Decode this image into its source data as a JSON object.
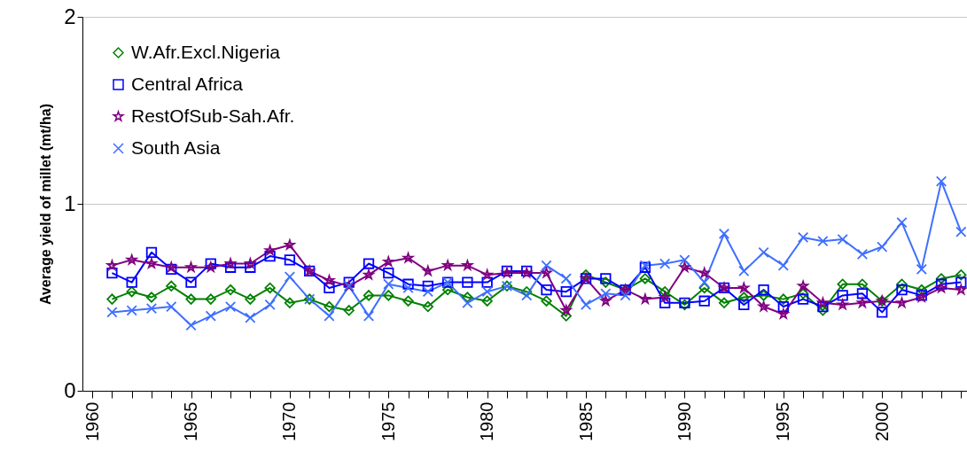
{
  "chart_data": {
    "type": "line",
    "ylabel": "Average yield of millet (mt/ha)",
    "legend": "top left",
    "grid": "y",
    "line_style": "solid",
    "x": [
      1961,
      1962,
      1963,
      1964,
      1965,
      1966,
      1967,
      1968,
      1969,
      1970,
      1971,
      1972,
      1973,
      1974,
      1975,
      1976,
      1977,
      1978,
      1979,
      1980,
      1981,
      1982,
      1983,
      1984,
      1985,
      1986,
      1987,
      1988,
      1989,
      1990,
      1991,
      1992,
      1993,
      1994,
      1995,
      1996,
      1997,
      1998,
      1999,
      2000,
      2001,
      2002,
      2003,
      2004
    ],
    "xlim": [
      1959.5,
      2004.3
    ],
    "xticks": [
      1960,
      {
        "value": 1961,
        "label": null
      },
      {
        "value": 1962,
        "label": null
      },
      {
        "value": 1963,
        "label": null
      },
      {
        "value": 1964,
        "label": null
      },
      1965,
      {
        "value": 1966,
        "label": null
      },
      {
        "value": 1967,
        "label": null
      },
      {
        "value": 1968,
        "label": null
      },
      {
        "value": 1969,
        "label": null
      },
      1970,
      {
        "value": 1971,
        "label": null
      },
      {
        "value": 1972,
        "label": null
      },
      {
        "value": 1973,
        "label": null
      },
      {
        "value": 1974,
        "label": null
      },
      1975,
      {
        "value": 1976,
        "label": null
      },
      {
        "value": 1977,
        "label": null
      },
      {
        "value": 1978,
        "label": null
      },
      {
        "value": 1979,
        "label": null
      },
      1980,
      {
        "value": 1981,
        "label": null
      },
      {
        "value": 1982,
        "label": null
      },
      {
        "value": 1983,
        "label": null
      },
      {
        "value": 1984,
        "label": null
      },
      1985,
      {
        "value": 1986,
        "label": null
      },
      {
        "value": 1987,
        "label": null
      },
      {
        "value": 1988,
        "label": null
      },
      {
        "value": 1989,
        "label": null
      },
      1990,
      {
        "value": 1991,
        "label": null
      },
      {
        "value": 1992,
        "label": null
      },
      {
        "value": 1993,
        "label": null
      },
      {
        "value": 1994,
        "label": null
      },
      1995,
      {
        "value": 1996,
        "label": null
      },
      {
        "value": 1997,
        "label": null
      },
      {
        "value": 1998,
        "label": null
      },
      {
        "value": 1999,
        "label": null
      },
      2000,
      {
        "value": 2001,
        "label": null
      },
      {
        "value": 2002,
        "label": null
      },
      {
        "value": 2003,
        "label": null
      },
      {
        "value": 2004,
        "label": null
      }
    ],
    "ylim": [
      0,
      2
    ],
    "yticks": [
      0,
      1,
      2
    ],
    "series": [
      {
        "name": "W.Afr.Excl.Nigeria",
        "color": "#008000",
        "marker": "diamond",
        "values": [
          0.49,
          0.53,
          0.5,
          0.56,
          0.49,
          0.49,
          0.54,
          0.49,
          0.55,
          0.47,
          0.49,
          0.45,
          0.43,
          0.51,
          0.51,
          0.48,
          0.45,
          0.54,
          0.5,
          0.48,
          0.56,
          0.53,
          0.48,
          0.4,
          0.62,
          0.58,
          0.54,
          0.6,
          0.53,
          0.46,
          0.55,
          0.47,
          0.5,
          0.51,
          0.49,
          0.52,
          0.43,
          0.57,
          0.57,
          0.48,
          0.57,
          0.54,
          0.6,
          0.62
        ]
      },
      {
        "name": "Central Africa",
        "color": "#0000ff",
        "marker": "square",
        "values": [
          0.63,
          0.58,
          0.74,
          0.65,
          0.58,
          0.68,
          0.66,
          0.66,
          0.72,
          0.7,
          0.64,
          0.55,
          0.58,
          0.68,
          0.63,
          0.57,
          0.56,
          0.58,
          0.58,
          0.58,
          0.64,
          0.64,
          0.54,
          0.53,
          0.6,
          0.6,
          0.54,
          0.66,
          0.47,
          0.47,
          0.48,
          0.55,
          0.46,
          0.54,
          0.45,
          0.49,
          0.45,
          0.51,
          0.52,
          0.42,
          0.54,
          0.51,
          0.57,
          0.58
        ]
      },
      {
        "name": "RestOfSub-Sah.Afr.",
        "color": "#800080",
        "marker": "star",
        "values": [
          0.67,
          0.7,
          0.68,
          0.66,
          0.66,
          0.66,
          0.68,
          0.68,
          0.75,
          0.78,
          0.64,
          0.59,
          0.56,
          0.62,
          0.69,
          0.71,
          0.64,
          0.67,
          0.67,
          0.62,
          0.63,
          0.63,
          0.63,
          0.43,
          0.6,
          0.48,
          0.54,
          0.49,
          0.5,
          0.66,
          0.63,
          0.55,
          0.55,
          0.45,
          0.41,
          0.56,
          0.47,
          0.46,
          0.47,
          0.48,
          0.47,
          0.5,
          0.55,
          0.54
        ]
      },
      {
        "name": "South Asia",
        "color": "#3f6fff",
        "marker": "cross",
        "values": [
          0.42,
          0.43,
          0.44,
          0.45,
          0.35,
          0.4,
          0.45,
          0.39,
          0.46,
          0.61,
          0.49,
          0.4,
          0.56,
          0.4,
          0.57,
          0.55,
          0.53,
          0.58,
          0.47,
          0.53,
          0.56,
          0.51,
          0.67,
          0.6,
          0.46,
          0.52,
          0.51,
          0.67,
          0.68,
          0.7,
          0.58,
          0.84,
          0.64,
          0.74,
          0.67,
          0.82,
          0.8,
          0.81,
          0.73,
          0.77,
          0.9,
          0.65,
          1.12,
          0.85
        ]
      }
    ]
  }
}
